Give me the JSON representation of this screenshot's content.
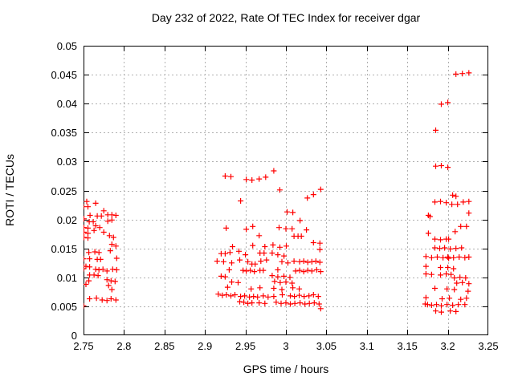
{
  "page": {
    "background": "#ffffff"
  },
  "chart_data": {
    "type": "scatter",
    "title": "Day 232 of 2022, Rate Of TEC Index for receiver dgar",
    "xlabel": "GPS time / hours",
    "ylabel": "ROTI / TECUs",
    "xlim": [
      2.75,
      3.25
    ],
    "ylim": [
      0,
      0.05
    ],
    "xticks": [
      2.75,
      2.8,
      2.85,
      2.9,
      2.95,
      3,
      3.05,
      3.1,
      3.15,
      3.2,
      3.25
    ],
    "xtick_labels": [
      "2.75",
      "2.8",
      "2.85",
      "2.9",
      "2.95",
      "3",
      "3.05",
      "3.1",
      "3.15",
      "3.2",
      "3.25"
    ],
    "yticks": [
      0,
      0.005,
      0.01,
      0.015,
      0.02,
      0.025,
      0.03,
      0.035,
      0.04,
      0.045,
      0.05
    ],
    "ytick_labels": [
      "0",
      "0.005",
      "0.01",
      "0.015",
      "0.02",
      "0.025",
      "0.03",
      "0.035",
      "0.04",
      "0.045",
      "0.05"
    ],
    "grid": true,
    "legend": "none",
    "marker": "plus",
    "marker_color": "#ff0000",
    "grid_color": "#b0b0b0",
    "border_color": "#000000",
    "series": [
      {
        "name": "ROTI",
        "points": [
          [
            2.75,
            0.0222
          ],
          [
            2.7555,
            0.0222
          ],
          [
            2.754,
            0.0231
          ],
          [
            2.765,
            0.0228
          ],
          [
            2.775,
            0.0215
          ],
          [
            2.758,
            0.0207
          ],
          [
            2.7505,
            0.0201
          ],
          [
            2.767,
            0.0206
          ],
          [
            2.772,
            0.0206
          ],
          [
            2.78,
            0.0208
          ],
          [
            2.785,
            0.0208
          ],
          [
            2.79,
            0.0207
          ],
          [
            2.757,
            0.0196
          ],
          [
            2.762,
            0.0196
          ],
          [
            2.78,
            0.0197
          ],
          [
            2.785,
            0.0199
          ],
          [
            2.7505,
            0.0186
          ],
          [
            2.7555,
            0.0185
          ],
          [
            2.765,
            0.0189
          ],
          [
            2.77,
            0.0186
          ],
          [
            2.7505,
            0.0178
          ],
          [
            2.7555,
            0.0176
          ],
          [
            2.763,
            0.0181
          ],
          [
            2.775,
            0.0178
          ],
          [
            2.7505,
            0.0169
          ],
          [
            2.7555,
            0.0168
          ],
          [
            2.782,
            0.0172
          ],
          [
            2.787,
            0.0169
          ],
          [
            2.785,
            0.0157
          ],
          [
            2.79,
            0.0154
          ],
          [
            2.7565,
            0.0143
          ],
          [
            2.764,
            0.0144
          ],
          [
            2.769,
            0.0143
          ],
          [
            2.783,
            0.0146
          ],
          [
            2.75,
            0.0132
          ],
          [
            2.7575,
            0.0132
          ],
          [
            2.767,
            0.0131
          ],
          [
            2.771,
            0.0131
          ],
          [
            2.791,
            0.0133
          ],
          [
            2.75,
            0.0119
          ],
          [
            2.753,
            0.0119
          ],
          [
            2.7575,
            0.0118
          ],
          [
            2.75,
            0.0115
          ],
          [
            2.765,
            0.0114
          ],
          [
            2.769,
            0.0113
          ],
          [
            2.774,
            0.0114
          ],
          [
            2.779,
            0.0111
          ],
          [
            2.786,
            0.0114
          ],
          [
            2.791,
            0.0113
          ],
          [
            2.7575,
            0.0104
          ],
          [
            2.763,
            0.0104
          ],
          [
            2.768,
            0.0103
          ],
          [
            2.7565,
            0.0094
          ],
          [
            2.779,
            0.0096
          ],
          [
            2.784,
            0.0094
          ],
          [
            2.789,
            0.0093
          ],
          [
            2.753,
            0.0088
          ],
          [
            2.781,
            0.0086
          ],
          [
            2.785,
            0.0079
          ],
          [
            2.7575,
            0.0063
          ],
          [
            2.766,
            0.0064
          ],
          [
            2.773,
            0.0061
          ],
          [
            2.779,
            0.006
          ],
          [
            2.784,
            0.0063
          ],
          [
            2.79,
            0.0061
          ],
          [
            2.75,
            0.0051
          ],
          [
            2.925,
            0.0275
          ],
          [
            2.932,
            0.0274
          ],
          [
            2.951,
            0.0269
          ],
          [
            2.958,
            0.0268
          ],
          [
            2.967,
            0.027
          ],
          [
            2.975,
            0.0273
          ],
          [
            2.985,
            0.0284
          ],
          [
            2.9925,
            0.0251
          ],
          [
            2.944,
            0.0232
          ],
          [
            3.0015,
            0.0213
          ],
          [
            3.0085,
            0.0212
          ],
          [
            3.0265,
            0.0237
          ],
          [
            3.034,
            0.0243
          ],
          [
            3.043,
            0.0252
          ],
          [
            2.9262,
            0.0185
          ],
          [
            2.951,
            0.0183
          ],
          [
            2.959,
            0.0188
          ],
          [
            2.9916,
            0.0186
          ],
          [
            3.0,
            0.0184
          ],
          [
            3.0076,
            0.0184
          ],
          [
            3.0175,
            0.0198
          ],
          [
            3.0254,
            0.0182
          ],
          [
            2.967,
            0.0172
          ],
          [
            3.01,
            0.0171
          ],
          [
            3.015,
            0.0171
          ],
          [
            3.019,
            0.0171
          ],
          [
            3.034,
            0.016
          ],
          [
            3.042,
            0.0159
          ],
          [
            2.934,
            0.0153
          ],
          [
            2.959,
            0.0155
          ],
          [
            2.974,
            0.0153
          ],
          [
            2.984,
            0.0156
          ],
          [
            2.9926,
            0.0152
          ],
          [
            3.0005,
            0.0154
          ],
          [
            3.042,
            0.0148
          ],
          [
            2.92,
            0.0141
          ],
          [
            2.925,
            0.0141
          ],
          [
            2.931,
            0.0143
          ],
          [
            2.942,
            0.0145
          ],
          [
            2.95,
            0.0139
          ],
          [
            2.968,
            0.0142
          ],
          [
            2.973,
            0.0142
          ],
          [
            2.983,
            0.0142
          ],
          [
            2.99,
            0.0139
          ],
          [
            2.9976,
            0.0137
          ],
          [
            2.915,
            0.0128
          ],
          [
            2.923,
            0.0127
          ],
          [
            2.933,
            0.0125
          ],
          [
            2.943,
            0.013
          ],
          [
            2.953,
            0.0127
          ],
          [
            2.958,
            0.0123
          ],
          [
            2.962,
            0.0123
          ],
          [
            2.969,
            0.0128
          ],
          [
            2.976,
            0.013
          ],
          [
            2.995,
            0.0127
          ],
          [
            3.0025,
            0.0125
          ],
          [
            3.01,
            0.0128
          ],
          [
            3.017,
            0.0127
          ],
          [
            3.022,
            0.0128
          ],
          [
            3.027,
            0.0126
          ],
          [
            3.032,
            0.0127
          ],
          [
            3.037,
            0.0128
          ],
          [
            3.042,
            0.0126
          ],
          [
            2.93,
            0.0113
          ],
          [
            2.947,
            0.0112
          ],
          [
            2.951,
            0.0111
          ],
          [
            2.956,
            0.0112
          ],
          [
            2.961,
            0.011
          ],
          [
            2.968,
            0.0112
          ],
          [
            2.972,
            0.0112
          ],
          [
            2.99,
            0.0113
          ],
          [
            3.012,
            0.0111
          ],
          [
            3.017,
            0.0112
          ],
          [
            3.022,
            0.011
          ],
          [
            3.027,
            0.0112
          ],
          [
            3.032,
            0.0111
          ],
          [
            3.038,
            0.0113
          ],
          [
            3.043,
            0.011
          ],
          [
            2.92,
            0.0102
          ],
          [
            2.925,
            0.0101
          ],
          [
            2.983,
            0.0103
          ],
          [
            2.99,
            0.0101
          ],
          [
            2.9975,
            0.0102
          ],
          [
            3.005,
            0.01
          ],
          [
            2.933,
            0.0092
          ],
          [
            2.941,
            0.0091
          ],
          [
            2.986,
            0.0093
          ],
          [
            2.993,
            0.0091
          ],
          [
            3.0,
            0.0092
          ],
          [
            3.0076,
            0.009
          ],
          [
            2.928,
            0.0083
          ],
          [
            2.957,
            0.008
          ],
          [
            2.968,
            0.0082
          ],
          [
            2.985,
            0.0081
          ],
          [
            2.995,
            0.0079
          ],
          [
            3.0085,
            0.0082
          ],
          [
            3.0165,
            0.008
          ],
          [
            2.9165,
            0.0071
          ],
          [
            2.9215,
            0.0069
          ],
          [
            2.9265,
            0.007
          ],
          [
            2.932,
            0.0068
          ],
          [
            2.937,
            0.007
          ],
          [
            2.944,
            0.0067
          ],
          [
            2.949,
            0.0068
          ],
          [
            2.955,
            0.0066
          ],
          [
            2.96,
            0.0067
          ],
          [
            2.965,
            0.0066
          ],
          [
            2.972,
            0.0068
          ],
          [
            2.978,
            0.0066
          ],
          [
            2.985,
            0.0067
          ],
          [
            2.9955,
            0.007
          ],
          [
            3.0055,
            0.0068
          ],
          [
            3.0105,
            0.0067
          ],
          [
            3.0165,
            0.0069
          ],
          [
            3.0225,
            0.0067
          ],
          [
            3.0285,
            0.0068
          ],
          [
            3.034,
            0.007
          ],
          [
            3.04,
            0.0067
          ],
          [
            2.943,
            0.0058
          ],
          [
            2.948,
            0.0057
          ],
          [
            2.953,
            0.0055
          ],
          [
            2.958,
            0.0056
          ],
          [
            2.967,
            0.0056
          ],
          [
            2.974,
            0.0055
          ],
          [
            2.988,
            0.0057
          ],
          [
            2.994,
            0.0055
          ],
          [
            3.0,
            0.0056
          ],
          [
            3.0055,
            0.0054
          ],
          [
            3.011,
            0.0055
          ],
          [
            3.0175,
            0.0056
          ],
          [
            3.0235,
            0.0054
          ],
          [
            3.029,
            0.0055
          ],
          [
            3.035,
            0.0056
          ],
          [
            3.041,
            0.0054
          ],
          [
            3.043,
            0.0046
          ],
          [
            3.21,
            0.0451
          ],
          [
            3.218,
            0.0452
          ],
          [
            3.226,
            0.0453
          ],
          [
            3.192,
            0.0399
          ],
          [
            3.2,
            0.0402
          ],
          [
            3.185,
            0.0354
          ],
          [
            3.185,
            0.0292
          ],
          [
            3.192,
            0.0293
          ],
          [
            3.2,
            0.029
          ],
          [
            3.206,
            0.0242
          ],
          [
            3.21,
            0.024
          ],
          [
            3.184,
            0.023
          ],
          [
            3.191,
            0.0231
          ],
          [
            3.198,
            0.0229
          ],
          [
            3.205,
            0.0226
          ],
          [
            3.212,
            0.0226
          ],
          [
            3.219,
            0.023
          ],
          [
            3.226,
            0.0231
          ],
          [
            3.176,
            0.0207
          ],
          [
            3.178,
            0.0205
          ],
          [
            3.226,
            0.0211
          ],
          [
            3.216,
            0.0188
          ],
          [
            3.223,
            0.0188
          ],
          [
            3.209,
            0.0179
          ],
          [
            3.176,
            0.0176
          ],
          [
            3.184,
            0.0166
          ],
          [
            3.191,
            0.0165
          ],
          [
            3.198,
            0.0166
          ],
          [
            3.201,
            0.0166
          ],
          [
            3.184,
            0.0151
          ],
          [
            3.19,
            0.015
          ],
          [
            3.196,
            0.0151
          ],
          [
            3.203,
            0.0149
          ],
          [
            3.21,
            0.015
          ],
          [
            3.217,
            0.0151
          ],
          [
            3.173,
            0.0136
          ],
          [
            3.18,
            0.0134
          ],
          [
            3.187,
            0.0135
          ],
          [
            3.194,
            0.0134
          ],
          [
            3.2,
            0.0135
          ],
          [
            3.201,
            0.0133
          ],
          [
            3.207,
            0.0134
          ],
          [
            3.214,
            0.0135
          ],
          [
            3.221,
            0.0134
          ],
          [
            3.226,
            0.0135
          ],
          [
            3.173,
            0.0119
          ],
          [
            3.191,
            0.0117
          ],
          [
            3.2,
            0.0117
          ],
          [
            3.207,
            0.0115
          ],
          [
            3.173,
            0.0106
          ],
          [
            3.18,
            0.0105
          ],
          [
            3.191,
            0.0104
          ],
          [
            3.198,
            0.0106
          ],
          [
            3.204,
            0.0105
          ],
          [
            3.208,
            0.0099
          ],
          [
            3.215,
            0.01
          ],
          [
            3.222,
            0.0099
          ],
          [
            3.211,
            0.009
          ],
          [
            3.218,
            0.0091
          ],
          [
            3.226,
            0.0089
          ],
          [
            3.184,
            0.0081
          ],
          [
            3.199,
            0.008
          ],
          [
            3.208,
            0.0079
          ],
          [
            3.225,
            0.0076
          ],
          [
            3.173,
            0.0065
          ],
          [
            3.193,
            0.0063
          ],
          [
            3.202,
            0.0064
          ],
          [
            3.216,
            0.0062
          ],
          [
            3.223,
            0.0064
          ],
          [
            3.172,
            0.0054
          ],
          [
            3.175,
            0.0053
          ],
          [
            3.18,
            0.0052
          ],
          [
            3.186,
            0.0053
          ],
          [
            3.192,
            0.0051
          ],
          [
            3.199,
            0.0053
          ],
          [
            3.206,
            0.0052
          ],
          [
            3.213,
            0.0053
          ],
          [
            3.221,
            0.0053
          ],
          [
            3.185,
            0.0042
          ],
          [
            3.192,
            0.004
          ],
          [
            3.203,
            0.0042
          ],
          [
            3.21,
            0.0041
          ]
        ]
      }
    ]
  }
}
